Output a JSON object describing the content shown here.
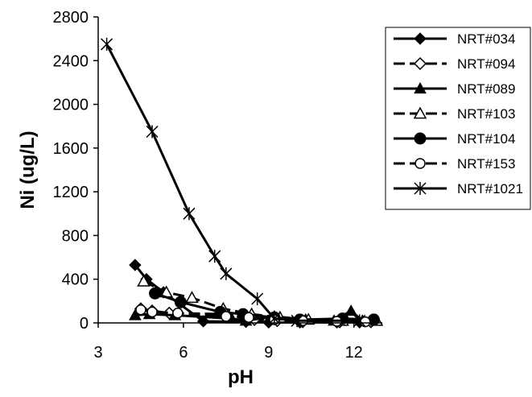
{
  "chart_data": {
    "type": "scatter",
    "title": "",
    "xlabel": "pH",
    "ylabel": "Ni (ug/L)",
    "xlim": [
      3,
      13
    ],
    "ylim": [
      0,
      2800
    ],
    "xticks": [
      3,
      6,
      9,
      12
    ],
    "yticks": [
      0,
      400,
      800,
      1200,
      1600,
      2000,
      2400,
      2800
    ],
    "grid": false,
    "legend_position": "right",
    "series": [
      {
        "name": "NRT#034",
        "marker": "diamond-filled",
        "dash": "solid",
        "points": [
          [
            4.3,
            530
          ],
          [
            4.7,
            400
          ],
          [
            5.3,
            280
          ],
          [
            6.7,
            15
          ],
          [
            8.2,
            10
          ],
          [
            9.0,
            5
          ],
          [
            10.1,
            5
          ],
          [
            11.4,
            5
          ],
          [
            12.2,
            5
          ]
        ]
      },
      {
        "name": "NRT#094",
        "marker": "diamond-open",
        "dash": "dashed",
        "points": [
          [
            4.5,
            130
          ],
          [
            4.9,
            110
          ],
          [
            5.5,
            90
          ],
          [
            7.5,
            80
          ],
          [
            8.5,
            30
          ],
          [
            9.3,
            20
          ],
          [
            10.2,
            10
          ],
          [
            11.5,
            10
          ],
          [
            12.6,
            10
          ]
        ]
      },
      {
        "name": "NRT#089",
        "marker": "triangle-filled",
        "dash": "solid",
        "points": [
          [
            4.3,
            70
          ],
          [
            4.8,
            80
          ],
          [
            5.7,
            70
          ],
          [
            7.7,
            40
          ],
          [
            8.2,
            20
          ],
          [
            9.2,
            60
          ],
          [
            10.3,
            30
          ],
          [
            11.3,
            20
          ],
          [
            11.9,
            110
          ],
          [
            12.3,
            20
          ]
        ]
      },
      {
        "name": "NRT#103",
        "marker": "triangle-open",
        "dash": "dashed",
        "points": [
          [
            4.6,
            380
          ],
          [
            5.4,
            280
          ],
          [
            6.3,
            230
          ],
          [
            7.4,
            130
          ],
          [
            8.4,
            80
          ],
          [
            9.4,
            50
          ],
          [
            10.4,
            30
          ],
          [
            11.6,
            20
          ],
          [
            12.8,
            20
          ]
        ]
      },
      {
        "name": "NRT#104",
        "marker": "circle-filled",
        "dash": "solid",
        "points": [
          [
            5.0,
            270
          ],
          [
            5.9,
            190
          ],
          [
            7.3,
            100
          ],
          [
            8.1,
            80
          ],
          [
            9.2,
            50
          ],
          [
            10.1,
            30
          ],
          [
            11.6,
            40
          ],
          [
            12.7,
            30
          ]
        ]
      },
      {
        "name": "NRT#153",
        "marker": "circle-open",
        "dash": "dashed",
        "points": [
          [
            4.5,
            120
          ],
          [
            4.9,
            100
          ],
          [
            5.8,
            90
          ],
          [
            7.5,
            60
          ],
          [
            8.3,
            50
          ],
          [
            9.2,
            30
          ],
          [
            10.2,
            20
          ],
          [
            11.4,
            15
          ],
          [
            12.4,
            10
          ]
        ]
      },
      {
        "name": "NRT#1021",
        "marker": "star",
        "dash": "solid",
        "points": [
          [
            3.3,
            2550
          ],
          [
            4.9,
            1750
          ],
          [
            6.2,
            1000
          ],
          [
            7.1,
            610
          ],
          [
            7.5,
            450
          ],
          [
            8.6,
            220
          ],
          [
            9.2,
            40
          ],
          [
            10.0,
            20
          ],
          [
            12.2,
            20
          ]
        ]
      }
    ]
  }
}
